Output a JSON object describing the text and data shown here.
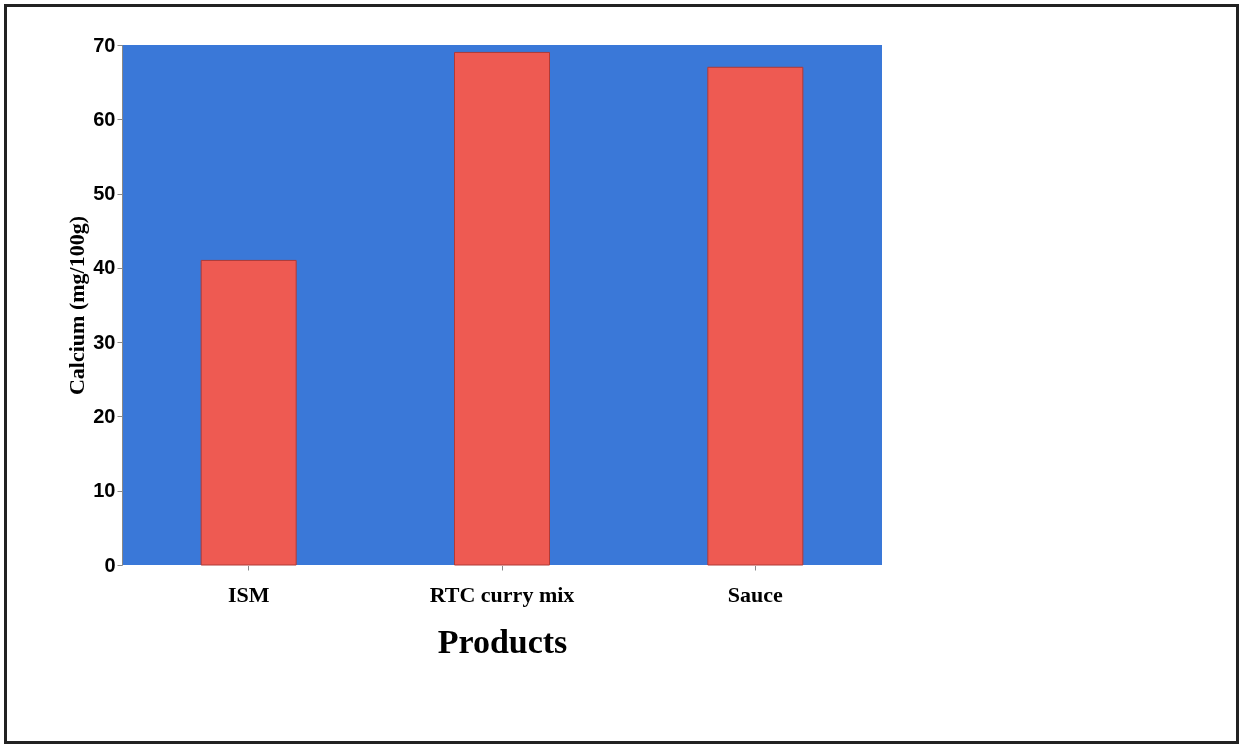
{
  "chart_data": {
    "type": "bar",
    "xlabel": "Products",
    "ylabel": "Calcium (mg/100g)",
    "categories": [
      "ISM",
      "RTC curry mix",
      "Sauce"
    ],
    "values": [
      41,
      69,
      67
    ],
    "color": "#ee5a52",
    "ylim": [
      0,
      70
    ],
    "yticks": [
      0,
      10,
      20,
      30,
      40,
      50,
      60,
      70
    ],
    "grid": false
  }
}
